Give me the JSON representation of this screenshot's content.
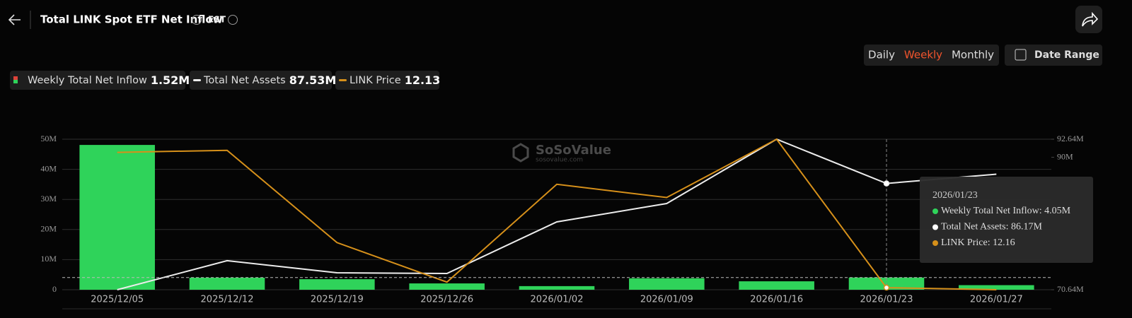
{
  "header": {
    "title": "Total LINK Spot ETF Net Inflow",
    "timezone": "EST"
  },
  "controls": {
    "periods": [
      "Daily",
      "Weekly",
      "Monthly"
    ],
    "active_period": 1,
    "date_range": "Date Range"
  },
  "watermark": {
    "brand": "SoSoValue",
    "url": "sosovalue.com"
  },
  "chart_data": {
    "type": "bar-line",
    "categories": [
      "2025/12/05",
      "2025/12/12",
      "2025/12/19",
      "2025/12/26",
      "2026/01/02",
      "2026/01/09",
      "2026/01/16",
      "2026/01/23",
      "2026/01/27"
    ],
    "series": [
      {
        "name": "Weekly Total Net Inflow",
        "type": "bar",
        "color": "#2fd35a",
        "axis": "y",
        "legend_value": "1.52M",
        "values": [
          48100000,
          4000000,
          3500000,
          2100000,
          1200000,
          3800000,
          2800000,
          4050000,
          1520000
        ]
      },
      {
        "name": "Total Net Assets",
        "type": "line",
        "color": "#ececec",
        "axis": "y2",
        "legend_value": "87.53M",
        "values": [
          70640000,
          74880000,
          73120000,
          73020000,
          80560000,
          83240000,
          92640000,
          86170000,
          87530000
        ]
      },
      {
        "name": "LINK Price",
        "type": "line",
        "color": "#d6901a",
        "axis": "y3",
        "legend_value": "12.13",
        "values": [
          14.11,
          14.14,
          12.81,
          12.24,
          13.65,
          13.46,
          14.3,
          12.16,
          12.13
        ]
      }
    ],
    "ylim": [
      0,
      50000000
    ],
    "yticks": [
      0,
      {
        "value": 10000000,
        "label": "10M"
      },
      {
        "value": 20000000,
        "label": "20M"
      },
      {
        "value": 30000000,
        "label": "30M"
      },
      {
        "value": 40000000,
        "label": "40M"
      },
      {
        "value": 50000000,
        "label": "50M"
      }
    ],
    "y2lim": [
      70640000,
      92640000
    ],
    "y2ticks": [
      {
        "value": 70640000,
        "label": "70.64M"
      },
      {
        "value": 90000000,
        "label": "90M"
      },
      {
        "value": 92640000,
        "label": "92.64M"
      }
    ],
    "y3lim": [
      12.13,
      14.3
    ],
    "grid": true,
    "tooltip": {
      "index": 7,
      "title": "2026/01/23",
      "items": [
        "Weekly Total Net Inflow: 4.05M",
        "Total Net Assets: 86.17M",
        "LINK Price: 12.16"
      ]
    }
  }
}
